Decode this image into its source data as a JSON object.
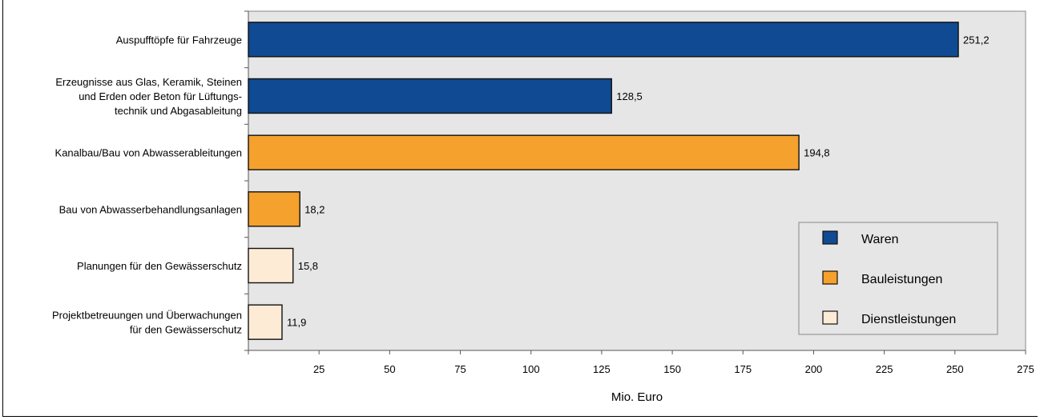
{
  "chart_data": {
    "type": "bar",
    "orientation": "horizontal",
    "categories": [
      [
        "Auspufftöpfe für Fahrzeuge"
      ],
      [
        "Erzeugnisse aus Glas, Keramik, Steinen",
        "und Erden oder Beton für Lüftungs-",
        "technik und Abgasableitung"
      ],
      [
        "Kanalbau/Bau von Abwasserableitungen"
      ],
      [
        "Bau von Abwasserbehandlungsanlagen"
      ],
      [
        "Planungen für den Gewässerschutz"
      ],
      [
        "Projektbetreuungen und Überwachungen",
        "für den Gewässerschutz"
      ]
    ],
    "values": [
      251.2,
      128.5,
      194.8,
      18.2,
      15.8,
      11.9
    ],
    "value_labels": [
      "251,2",
      "128,5",
      "194,8",
      "18,2",
      "15,8",
      "11,9"
    ],
    "groups": [
      "waren",
      "waren",
      "bau",
      "bau",
      "dienst",
      "dienst"
    ],
    "legend": [
      {
        "key": "waren",
        "label": "Waren",
        "color": "#0f4a92"
      },
      {
        "key": "bau",
        "label": "Bauleistungen",
        "color": "#f4a12e"
      },
      {
        "key": "dienst",
        "label": "Dienstleistungen",
        "color": "#fdebd6"
      }
    ],
    "xlabel": "Mio. Euro",
    "xlim": [
      0,
      275
    ],
    "xticks": [
      25,
      50,
      75,
      100,
      125,
      150,
      175,
      200,
      225,
      250,
      275
    ],
    "plot_background": "#e6e6e6",
    "grid": false,
    "legend_position": "bottom-right"
  }
}
